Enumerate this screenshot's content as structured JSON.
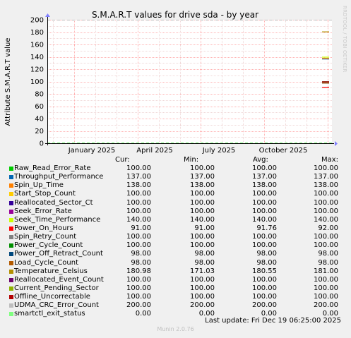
{
  "chart_data": {
    "type": "line",
    "title": "S.M.A.R.T values for drive sda - by year",
    "ylabel": "Attribute S.M.A.R.T value",
    "xlabel": "",
    "ylim": [
      0,
      200
    ],
    "yticks": [
      "0",
      "20",
      "40",
      "60",
      "80",
      "100",
      "120",
      "140",
      "160",
      "180",
      "200"
    ],
    "xticks": [
      "January 2025",
      "April 2025",
      "July 2025",
      "October 2025"
    ],
    "grid": true,
    "series": [
      {
        "name": "Raw_Read_Error_Rate",
        "color": "#00cc00",
        "cur": "100.00",
        "min": "100.00",
        "avg": "100.00",
        "max": "100.00",
        "value": 100
      },
      {
        "name": "Throughput_Performance",
        "color": "#0066b3",
        "cur": "137.00",
        "min": "137.00",
        "avg": "137.00",
        "max": "137.00",
        "value": 137
      },
      {
        "name": "Spin_Up_Time",
        "color": "#ff8000",
        "cur": "138.00",
        "min": "138.00",
        "avg": "138.00",
        "max": "138.00",
        "value": 138
      },
      {
        "name": "Start_Stop_Count",
        "color": "#ffcc00",
        "cur": "100.00",
        "min": "100.00",
        "avg": "100.00",
        "max": "100.00",
        "value": 100
      },
      {
        "name": "Reallocated_Sector_Ct",
        "color": "#330099",
        "cur": "100.00",
        "min": "100.00",
        "avg": "100.00",
        "max": "100.00",
        "value": 100
      },
      {
        "name": "Seek_Error_Rate",
        "color": "#990099",
        "cur": "100.00",
        "min": "100.00",
        "avg": "100.00",
        "max": "100.00",
        "value": 100
      },
      {
        "name": "Seek_Time_Performance",
        "color": "#ccff00",
        "cur": "140.00",
        "min": "140.00",
        "avg": "140.00",
        "max": "140.00",
        "value": 140
      },
      {
        "name": "Power_On_Hours",
        "color": "#ff0000",
        "cur": "91.00",
        "min": "91.00",
        "avg": "91.76",
        "max": "92.00",
        "value": 91
      },
      {
        "name": "Spin_Retry_Count",
        "color": "#808080",
        "cur": "100.00",
        "min": "100.00",
        "avg": "100.00",
        "max": "100.00",
        "value": 100
      },
      {
        "name": "Power_Cycle_Count",
        "color": "#008f00",
        "cur": "100.00",
        "min": "100.00",
        "avg": "100.00",
        "max": "100.00",
        "value": 100
      },
      {
        "name": "Power_Off_Retract_Count",
        "color": "#00487d",
        "cur": "98.00",
        "min": "98.00",
        "avg": "98.00",
        "max": "98.00",
        "value": 98
      },
      {
        "name": "Load_Cycle_Count",
        "color": "#b35a00",
        "cur": "98.00",
        "min": "98.00",
        "avg": "98.00",
        "max": "98.00",
        "value": 98
      },
      {
        "name": "Temperature_Celsius",
        "color": "#b38f00",
        "cur": "180.98",
        "min": "171.03",
        "avg": "180.55",
        "max": "181.00",
        "value": 181
      },
      {
        "name": "Reallocated_Event_Count",
        "color": "#6b006b",
        "cur": "100.00",
        "min": "100.00",
        "avg": "100.00",
        "max": "100.00",
        "value": 100
      },
      {
        "name": "Current_Pending_Sector",
        "color": "#8fb300",
        "cur": "100.00",
        "min": "100.00",
        "avg": "100.00",
        "max": "100.00",
        "value": 100
      },
      {
        "name": "Offline_Uncorrectable",
        "color": "#b30000",
        "cur": "100.00",
        "min": "100.00",
        "avg": "100.00",
        "max": "100.00",
        "value": 100
      },
      {
        "name": "UDMA_CRC_Error_Count",
        "color": "#bebebe",
        "cur": "200.00",
        "min": "200.00",
        "avg": "200.00",
        "max": "200.00",
        "value": 200
      },
      {
        "name": "smartctl_exit_status",
        "color": "#80ff80",
        "cur": "0.00",
        "min": "0.00",
        "avg": "0.00",
        "max": "0.00",
        "value": 0
      }
    ]
  },
  "legend_headers": {
    "cur": "Cur:",
    "min": "Min:",
    "avg": "Avg:",
    "max": "Max:"
  },
  "last_update": "Last update: Fri Dec 19 06:25:00 2025",
  "footer": "Munin 2.0.76",
  "watermark": "RRDTOOL / TOBI OETIKER"
}
